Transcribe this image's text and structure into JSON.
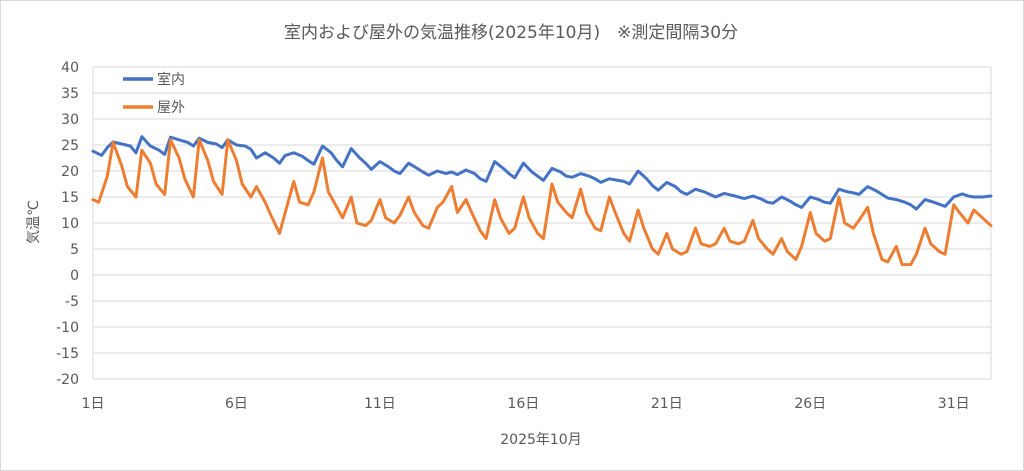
{
  "chart_data": {
    "type": "line",
    "title": "室内および屋外の気温推移(2025年10月)　※測定間隔30分",
    "xlabel": "2025年10月",
    "ylabel": "気温℃",
    "ylim": [
      -20,
      40
    ],
    "xlim": [
      1,
      32.3
    ],
    "x_ticks": [
      1,
      6,
      11,
      16,
      21,
      26,
      31
    ],
    "x_tick_labels": [
      "1日",
      "6日",
      "11日",
      "16日",
      "21日",
      "26日",
      "31日"
    ],
    "y_ticks": [
      40,
      35,
      30,
      25,
      20,
      15,
      10,
      5,
      0,
      -5,
      -10,
      -15,
      -20
    ],
    "grid": true,
    "legend_position": "top-left",
    "series": [
      {
        "name": "室内",
        "color": "#4472C4",
        "x": [
          1.0,
          1.3,
          1.5,
          1.7,
          2.0,
          2.3,
          2.5,
          2.7,
          3.0,
          3.3,
          3.5,
          3.7,
          4.0,
          4.3,
          4.5,
          4.7,
          5.0,
          5.3,
          5.5,
          5.7,
          6.0,
          6.3,
          6.5,
          6.7,
          7.0,
          7.3,
          7.5,
          7.7,
          8.0,
          8.3,
          8.5,
          8.7,
          9.0,
          9.3,
          9.5,
          9.7,
          10.0,
          10.3,
          10.5,
          10.7,
          11.0,
          11.3,
          11.5,
          11.7,
          12.0,
          12.3,
          12.5,
          12.7,
          13.0,
          13.3,
          13.5,
          13.7,
          14.0,
          14.3,
          14.5,
          14.7,
          15.0,
          15.3,
          15.5,
          15.7,
          16.0,
          16.3,
          16.5,
          16.7,
          17.0,
          17.3,
          17.5,
          17.7,
          18.0,
          18.3,
          18.5,
          18.7,
          19.0,
          19.3,
          19.5,
          19.7,
          20.0,
          20.3,
          20.5,
          20.7,
          21.0,
          21.3,
          21.5,
          21.7,
          22.0,
          22.3,
          22.5,
          22.7,
          23.0,
          23.3,
          23.5,
          23.7,
          24.0,
          24.3,
          24.5,
          24.7,
          25.0,
          25.3,
          25.5,
          25.7,
          26.0,
          26.3,
          26.5,
          26.7,
          27.0,
          27.3,
          27.5,
          27.7,
          28.0,
          28.3,
          28.5,
          28.7,
          29.0,
          29.3,
          29.5,
          29.7,
          30.0,
          30.3,
          30.5,
          30.7,
          31.0,
          31.3,
          31.5,
          31.7,
          32.0,
          32.3
        ],
        "values": [
          23.8,
          23.0,
          24.5,
          25.6,
          25.2,
          24.8,
          23.5,
          26.6,
          24.8,
          24.0,
          23.2,
          26.5,
          26.0,
          25.5,
          24.8,
          26.3,
          25.5,
          25.2,
          24.5,
          26.0,
          25.0,
          24.8,
          24.2,
          22.5,
          23.5,
          22.5,
          21.5,
          23.0,
          23.5,
          22.8,
          22.0,
          21.3,
          24.8,
          23.5,
          22.0,
          20.8,
          24.3,
          22.5,
          21.5,
          20.3,
          21.8,
          20.8,
          20.0,
          19.5,
          21.5,
          20.5,
          19.8,
          19.2,
          20.0,
          19.5,
          19.8,
          19.3,
          20.2,
          19.5,
          18.5,
          18.0,
          21.8,
          20.5,
          19.5,
          18.7,
          21.5,
          19.8,
          19.0,
          18.2,
          20.5,
          19.8,
          19.0,
          18.8,
          19.5,
          19.0,
          18.5,
          17.8,
          18.5,
          18.2,
          18.0,
          17.5,
          20.0,
          18.5,
          17.2,
          16.3,
          17.8,
          17.0,
          16.0,
          15.5,
          16.5,
          16.0,
          15.5,
          15.0,
          15.7,
          15.3,
          15.0,
          14.7,
          15.2,
          14.6,
          14.0,
          13.8,
          15.0,
          14.2,
          13.5,
          13.0,
          15.0,
          14.5,
          14.0,
          13.8,
          16.5,
          16.0,
          15.8,
          15.5,
          17.0,
          16.2,
          15.5,
          14.8,
          14.5,
          14.0,
          13.5,
          12.7,
          14.5,
          14.0,
          13.6,
          13.2,
          15.0,
          15.6,
          15.2,
          15.0,
          15.0,
          15.2
        ]
      },
      {
        "name": "屋外",
        "color": "#ED7D31",
        "x": [
          1.0,
          1.2,
          1.5,
          1.7,
          2.0,
          2.2,
          2.5,
          2.7,
          3.0,
          3.2,
          3.5,
          3.7,
          4.0,
          4.2,
          4.5,
          4.7,
          5.0,
          5.2,
          5.5,
          5.7,
          6.0,
          6.2,
          6.5,
          6.7,
          7.0,
          7.2,
          7.5,
          7.7,
          8.0,
          8.2,
          8.5,
          8.7,
          9.0,
          9.2,
          9.5,
          9.7,
          10.0,
          10.2,
          10.5,
          10.7,
          11.0,
          11.2,
          11.5,
          11.7,
          12.0,
          12.2,
          12.5,
          12.7,
          13.0,
          13.2,
          13.5,
          13.7,
          14.0,
          14.2,
          14.5,
          14.7,
          15.0,
          15.2,
          15.5,
          15.7,
          16.0,
          16.2,
          16.5,
          16.7,
          17.0,
          17.2,
          17.5,
          17.7,
          18.0,
          18.2,
          18.5,
          18.7,
          19.0,
          19.2,
          19.5,
          19.7,
          20.0,
          20.2,
          20.5,
          20.7,
          21.0,
          21.2,
          21.5,
          21.7,
          22.0,
          22.2,
          22.5,
          22.7,
          23.0,
          23.2,
          23.5,
          23.7,
          24.0,
          24.2,
          24.5,
          24.7,
          25.0,
          25.2,
          25.5,
          25.7,
          26.0,
          26.2,
          26.5,
          26.7,
          27.0,
          27.2,
          27.5,
          27.7,
          28.0,
          28.2,
          28.5,
          28.7,
          29.0,
          29.2,
          29.5,
          29.7,
          30.0,
          30.2,
          30.5,
          30.7,
          31.0,
          31.2,
          31.5,
          31.7,
          32.0,
          32.3
        ],
        "values": [
          14.5,
          14.0,
          19.0,
          25.5,
          21.0,
          17.0,
          15.0,
          24.0,
          21.5,
          17.5,
          15.5,
          26.0,
          22.5,
          18.5,
          15.0,
          26.0,
          22.0,
          18.0,
          15.5,
          26.0,
          22.0,
          17.5,
          15.0,
          17.0,
          14.0,
          11.5,
          8.0,
          12.0,
          18.0,
          14.0,
          13.5,
          16.0,
          22.5,
          16.0,
          13.0,
          11.0,
          15.0,
          10.0,
          9.5,
          10.5,
          14.5,
          11.0,
          10.0,
          11.5,
          15.0,
          12.0,
          9.5,
          9.0,
          13.0,
          14.0,
          17.0,
          12.0,
          14.5,
          12.0,
          8.5,
          7.0,
          14.5,
          11.0,
          8.0,
          9.0,
          15.0,
          11.0,
          8.0,
          7.0,
          17.5,
          14.0,
          12.0,
          11.0,
          16.5,
          12.0,
          9.0,
          8.5,
          15.0,
          12.0,
          8.0,
          6.5,
          12.5,
          9.0,
          5.0,
          4.0,
          8.0,
          5.0,
          4.0,
          4.5,
          9.0,
          6.0,
          5.5,
          6.0,
          9.0,
          6.5,
          6.0,
          6.5,
          10.5,
          7.0,
          5.0,
          4.0,
          7.0,
          4.5,
          3.0,
          5.5,
          12.0,
          8.0,
          6.5,
          7.0,
          15.0,
          10.0,
          9.0,
          10.5,
          13.0,
          8.0,
          3.0,
          2.5,
          5.5,
          2.0,
          2.0,
          4.0,
          9.0,
          6.0,
          4.5,
          4.0,
          13.5,
          12.0,
          10.0,
          12.5,
          11.0,
          9.5
        ]
      }
    ]
  }
}
